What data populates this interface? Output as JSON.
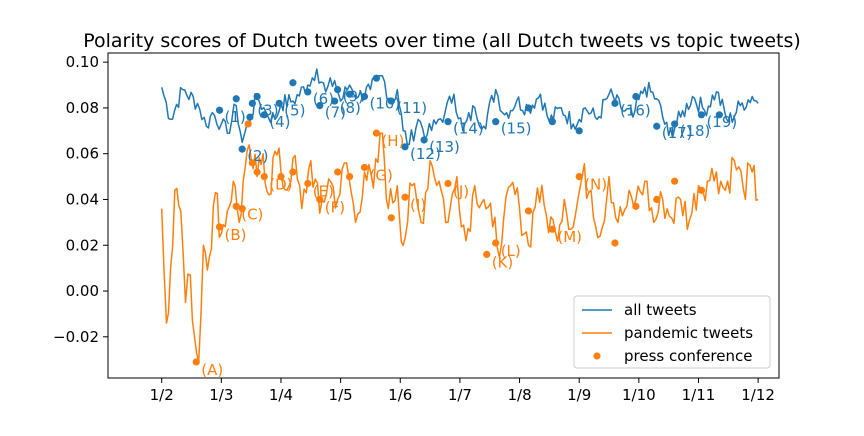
{
  "chart_data": {
    "type": "line",
    "title": "Polarity scores of Dutch tweets over time (all Dutch tweets vs topic tweets)",
    "xlabel": "",
    "ylabel": "",
    "x_ticks": [
      "1/2",
      "1/3",
      "1/4",
      "1/5",
      "1/6",
      "1/7",
      "1/8",
      "1/9",
      "1/10",
      "1/11",
      "1/12"
    ],
    "x_range_days": [
      -0.9,
      10.35
    ],
    "y_ticks": [
      -0.02,
      0.0,
      0.02,
      0.04,
      0.06,
      0.08,
      0.1
    ],
    "y_tick_labels": [
      "−0.02",
      "0.00",
      "0.02",
      "0.04",
      "0.06",
      "0.08",
      "0.10"
    ],
    "ylim": [
      -0.038,
      0.104
    ],
    "grid": false,
    "legend_position": "bottom-right",
    "colors": {
      "all": "#1f77b4",
      "pandemic": "#ff7f0e"
    },
    "series": [
      {
        "name": "all tweets",
        "color": "#1f77b4",
        "style": "line",
        "key_points": [
          [
            0.0,
            0.089
          ],
          [
            0.15,
            0.075
          ],
          [
            0.35,
            0.088
          ],
          [
            0.6,
            0.082
          ],
          [
            0.75,
            0.072
          ],
          [
            0.85,
            0.078
          ],
          [
            1.0,
            0.073
          ],
          [
            1.1,
            0.069
          ],
          [
            1.25,
            0.081
          ],
          [
            1.35,
            0.065
          ],
          [
            1.5,
            0.077
          ],
          [
            1.6,
            0.085
          ],
          [
            1.75,
            0.078
          ],
          [
            1.9,
            0.075
          ],
          [
            2.0,
            0.082
          ],
          [
            2.2,
            0.083
          ],
          [
            2.45,
            0.09
          ],
          [
            2.6,
            0.097
          ],
          [
            2.75,
            0.087
          ],
          [
            2.9,
            0.092
          ],
          [
            3.0,
            0.083
          ],
          [
            3.15,
            0.09
          ],
          [
            3.3,
            0.085
          ],
          [
            3.5,
            0.088
          ],
          [
            3.7,
            0.094
          ],
          [
            3.85,
            0.082
          ],
          [
            3.95,
            0.088
          ],
          [
            4.05,
            0.07
          ],
          [
            4.15,
            0.064
          ],
          [
            4.3,
            0.075
          ],
          [
            4.45,
            0.068
          ],
          [
            4.6,
            0.073
          ],
          [
            4.75,
            0.078
          ],
          [
            4.9,
            0.086
          ],
          [
            5.05,
            0.07
          ],
          [
            5.25,
            0.08
          ],
          [
            5.4,
            0.072
          ],
          [
            5.6,
            0.088
          ],
          [
            5.75,
            0.077
          ],
          [
            5.95,
            0.083
          ],
          [
            6.15,
            0.08
          ],
          [
            6.35,
            0.086
          ],
          [
            6.5,
            0.074
          ],
          [
            6.7,
            0.08
          ],
          [
            6.9,
            0.073
          ],
          [
            7.1,
            0.08
          ],
          [
            7.3,
            0.075
          ],
          [
            7.5,
            0.086
          ],
          [
            7.7,
            0.08
          ],
          [
            7.9,
            0.076
          ],
          [
            8.1,
            0.089
          ],
          [
            8.3,
            0.084
          ],
          [
            8.5,
            0.068
          ],
          [
            8.7,
            0.076
          ],
          [
            8.9,
            0.085
          ],
          [
            9.1,
            0.079
          ],
          [
            9.3,
            0.087
          ],
          [
            9.5,
            0.074
          ],
          [
            9.7,
            0.081
          ],
          [
            9.9,
            0.085
          ],
          [
            10.0,
            0.082
          ]
        ]
      },
      {
        "name": "pandemic tweets",
        "color": "#ff7f0e",
        "style": "line",
        "key_points": [
          [
            0.0,
            0.036
          ],
          [
            0.08,
            -0.014
          ],
          [
            0.15,
            0.01
          ],
          [
            0.22,
            0.044
          ],
          [
            0.32,
            0.035
          ],
          [
            0.4,
            -0.005
          ],
          [
            0.48,
            0.007
          ],
          [
            0.55,
            -0.02
          ],
          [
            0.62,
            -0.031
          ],
          [
            0.7,
            0.02
          ],
          [
            0.8,
            0.015
          ],
          [
            0.9,
            0.043
          ],
          [
            1.0,
            0.025
          ],
          [
            1.1,
            0.035
          ],
          [
            1.2,
            0.048
          ],
          [
            1.3,
            0.03
          ],
          [
            1.4,
            0.054
          ],
          [
            1.5,
            0.058
          ],
          [
            1.6,
            0.05
          ],
          [
            1.7,
            0.06
          ],
          [
            1.8,
            0.042
          ],
          [
            1.9,
            0.061
          ],
          [
            2.0,
            0.052
          ],
          [
            2.1,
            0.044
          ],
          [
            2.2,
            0.058
          ],
          [
            2.35,
            0.036
          ],
          [
            2.5,
            0.057
          ],
          [
            2.65,
            0.034
          ],
          [
            2.8,
            0.049
          ],
          [
            2.95,
            0.04
          ],
          [
            3.1,
            0.056
          ],
          [
            3.25,
            0.03
          ],
          [
            3.4,
            0.052
          ],
          [
            3.55,
            0.045
          ],
          [
            3.7,
            0.069
          ],
          [
            3.8,
            0.036
          ],
          [
            3.95,
            0.046
          ],
          [
            4.05,
            0.02
          ],
          [
            4.2,
            0.046
          ],
          [
            4.35,
            0.03
          ],
          [
            4.5,
            0.057
          ],
          [
            4.65,
            0.048
          ],
          [
            4.8,
            0.03
          ],
          [
            4.95,
            0.05
          ],
          [
            5.1,
            0.022
          ],
          [
            5.25,
            0.046
          ],
          [
            5.4,
            0.04
          ],
          [
            5.55,
            0.028
          ],
          [
            5.7,
            0.021
          ],
          [
            5.85,
            0.046
          ],
          [
            6.0,
            0.036
          ],
          [
            6.15,
            0.02
          ],
          [
            6.3,
            0.045
          ],
          [
            6.45,
            0.033
          ],
          [
            6.6,
            0.026
          ],
          [
            6.75,
            0.04
          ],
          [
            6.9,
            0.028
          ],
          [
            7.05,
            0.05
          ],
          [
            7.2,
            0.044
          ],
          [
            7.35,
            0.024
          ],
          [
            7.5,
            0.05
          ],
          [
            7.65,
            0.03
          ],
          [
            7.8,
            0.037
          ],
          [
            7.95,
            0.04
          ],
          [
            8.1,
            0.048
          ],
          [
            8.25,
            0.03
          ],
          [
            8.4,
            0.04
          ],
          [
            8.55,
            0.032
          ],
          [
            8.7,
            0.04
          ],
          [
            8.85,
            0.031
          ],
          [
            9.0,
            0.046
          ],
          [
            9.15,
            0.048
          ],
          [
            9.3,
            0.052
          ],
          [
            9.45,
            0.044
          ],
          [
            9.6,
            0.057
          ],
          [
            9.75,
            0.045
          ],
          [
            9.9,
            0.052
          ],
          [
            10.0,
            0.04
          ]
        ]
      },
      {
        "name": "press conference",
        "color": "#ff7f0e",
        "style": "markers",
        "note": "press conference dates marked on both series",
        "markers_all": [
          {
            "x": 0.97,
            "y": 0.079,
            "label": "(1)"
          },
          {
            "x": 1.25,
            "y": 0.084,
            "label": ""
          },
          {
            "x": 1.35,
            "y": 0.062,
            "label": "(2)"
          },
          {
            "x": 1.48,
            "y": 0.076,
            "label": ""
          },
          {
            "x": 1.52,
            "y": 0.082,
            "label": "(3)"
          },
          {
            "x": 1.6,
            "y": 0.085,
            "label": ""
          },
          {
            "x": 1.72,
            "y": 0.077,
            "label": "(4)"
          },
          {
            "x": 1.97,
            "y": 0.082,
            "label": "(5)"
          },
          {
            "x": 2.2,
            "y": 0.091,
            "label": ""
          },
          {
            "x": 2.45,
            "y": 0.087,
            "label": "(6)"
          },
          {
            "x": 2.65,
            "y": 0.081,
            "label": "(7)"
          },
          {
            "x": 2.9,
            "y": 0.083,
            "label": "(8)"
          },
          {
            "x": 2.95,
            "y": 0.088,
            "label": "(9)"
          },
          {
            "x": 3.15,
            "y": 0.086,
            "label": ""
          },
          {
            "x": 3.4,
            "y": 0.085,
            "label": "(10)"
          },
          {
            "x": 3.6,
            "y": 0.093,
            "label": ""
          },
          {
            "x": 3.85,
            "y": 0.083,
            "label": "(11)"
          },
          {
            "x": 4.08,
            "y": 0.063,
            "label": "(12)"
          },
          {
            "x": 4.4,
            "y": 0.066,
            "label": "(13)"
          },
          {
            "x": 4.8,
            "y": 0.074,
            "label": "(14)"
          },
          {
            "x": 5.6,
            "y": 0.074,
            "label": "(15)"
          },
          {
            "x": 6.15,
            "y": 0.08,
            "label": ""
          },
          {
            "x": 6.55,
            "y": 0.074,
            "label": ""
          },
          {
            "x": 7.0,
            "y": 0.07,
            "label": ""
          },
          {
            "x": 7.6,
            "y": 0.082,
            "label": "(16)"
          },
          {
            "x": 7.95,
            "y": 0.085,
            "label": ""
          },
          {
            "x": 8.3,
            "y": 0.072,
            "label": "(17)"
          },
          {
            "x": 8.6,
            "y": 0.073,
            "label": "(18)"
          },
          {
            "x": 9.05,
            "y": 0.077,
            "label": "(19)"
          },
          {
            "x": 9.35,
            "y": 0.077,
            "label": ""
          }
        ],
        "markers_pandemic": [
          {
            "x": 0.58,
            "y": -0.031,
            "label": "(A)"
          },
          {
            "x": 0.97,
            "y": 0.028,
            "label": "(B)"
          },
          {
            "x": 1.25,
            "y": 0.037,
            "label": "(C)"
          },
          {
            "x": 1.35,
            "y": 0.036,
            "label": ""
          },
          {
            "x": 1.45,
            "y": 0.073,
            "label": ""
          },
          {
            "x": 1.52,
            "y": 0.056,
            "label": ""
          },
          {
            "x": 1.6,
            "y": 0.052,
            "label": ""
          },
          {
            "x": 1.72,
            "y": 0.05,
            "label": "(D)"
          },
          {
            "x": 2.0,
            "y": 0.05,
            "label": ""
          },
          {
            "x": 2.2,
            "y": 0.052,
            "label": ""
          },
          {
            "x": 2.45,
            "y": 0.047,
            "label": "(E)"
          },
          {
            "x": 2.65,
            "y": 0.04,
            "label": "(F)"
          },
          {
            "x": 2.95,
            "y": 0.052,
            "label": ""
          },
          {
            "x": 3.15,
            "y": 0.05,
            "label": ""
          },
          {
            "x": 3.4,
            "y": 0.054,
            "label": "(G)"
          },
          {
            "x": 3.6,
            "y": 0.069,
            "label": "(H)"
          },
          {
            "x": 3.85,
            "y": 0.032,
            "label": ""
          },
          {
            "x": 4.08,
            "y": 0.041,
            "label": "(I)"
          },
          {
            "x": 4.8,
            "y": 0.047,
            "label": "(J)"
          },
          {
            "x": 5.6,
            "y": 0.021,
            "label": "(L)"
          },
          {
            "x": 5.45,
            "y": 0.016,
            "label": "(K)"
          },
          {
            "x": 6.15,
            "y": 0.035,
            "label": ""
          },
          {
            "x": 6.55,
            "y": 0.027,
            "label": "(M)"
          },
          {
            "x": 7.0,
            "y": 0.05,
            "label": "(N)"
          },
          {
            "x": 7.6,
            "y": 0.021,
            "label": ""
          },
          {
            "x": 7.95,
            "y": 0.037,
            "label": ""
          },
          {
            "x": 8.3,
            "y": 0.04,
            "label": ""
          },
          {
            "x": 8.6,
            "y": 0.048,
            "label": ""
          },
          {
            "x": 9.05,
            "y": 0.044,
            "label": ""
          }
        ]
      }
    ],
    "legend": [
      "all tweets",
      "pandemic tweets",
      "press conference"
    ]
  }
}
